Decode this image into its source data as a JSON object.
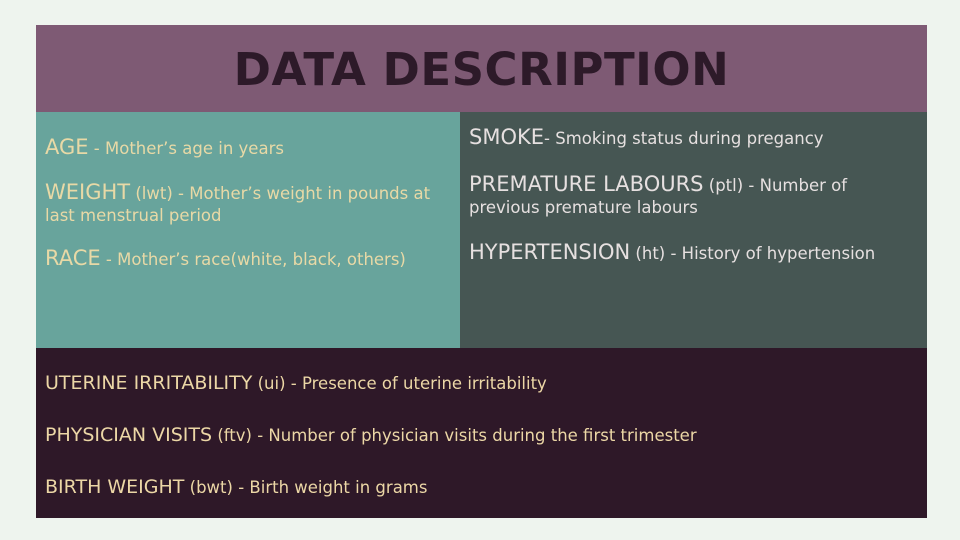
{
  "title": "DATA DESCRIPTION",
  "left_items": [
    {
      "term": "AGE",
      "abbr": "",
      "desc": " - Mother’s age in years"
    },
    {
      "term": "WEIGHT",
      "abbr": " (lwt)",
      "desc": " - Mother’s weight in pounds at last menstrual period"
    },
    {
      "term": "RACE",
      "abbr": "",
      "desc": " - Mother’s race(white, black, others)"
    }
  ],
  "right_items": [
    {
      "term": "SMOKE",
      "abbr": "",
      "desc": "- Smoking status during pregancy"
    },
    {
      "term": "PREMATURE LABOURS",
      "abbr": " (ptl)",
      "desc": " - Number of previous premature labours"
    },
    {
      "term": "HYPERTENSION",
      "abbr": " (ht)",
      "desc": " - History of hypertension"
    }
  ],
  "bottom_items": [
    {
      "term": "UTERINE IRRITABILITY",
      "abbr": " (ui)",
      "desc": " - Presence of uterine irritability"
    },
    {
      "term": "PHYSICIAN VISITS",
      "abbr": " (ftv)",
      "desc": " - Number of physician visits during the first trimester"
    },
    {
      "term": "BIRTH WEIGHT",
      "abbr": " (bwt)",
      "desc": " - Birth weight in grams"
    }
  ],
  "colors": {
    "title_bar": "#7e5a74",
    "title_text": "#2d1a29",
    "left_panel": "#68a49c",
    "right_panel": "#465653",
    "bottom_panel": "#2e1828",
    "background": "#eef4ee"
  }
}
